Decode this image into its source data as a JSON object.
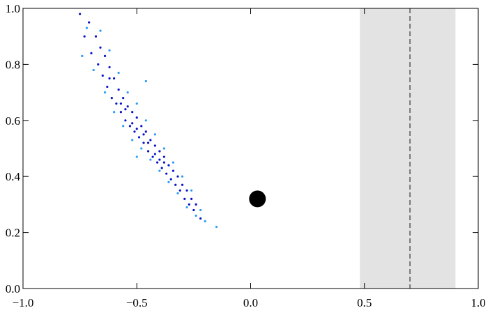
{
  "chart_data": {
    "type": "scatter",
    "xlim": [
      -1,
      1
    ],
    "ylim": [
      0,
      1
    ],
    "xticks": [
      {
        "value": -1,
        "label": "−1.0"
      },
      {
        "value": -0.5,
        "label": "−0.5"
      },
      {
        "value": 0,
        "label": "0.0"
      },
      0.5,
      {
        "value": 1,
        "label": "1.0"
      }
    ],
    "yticks": [
      {
        "value": 0,
        "label": "0.0"
      },
      0.2,
      0.4,
      0.6,
      0.8,
      {
        "value": 1,
        "label": "1.0"
      }
    ],
    "band": {
      "xlim": [
        0.48,
        0.9
      ],
      "color": "#e3e3e3"
    },
    "vline": {
      "x": 0.7,
      "color": "#333333"
    },
    "marker": {
      "x": 0.03,
      "y": 0.32,
      "color": "#000000"
    },
    "series": [
      {
        "color": "#0a14c8",
        "x": [
          -0.75,
          -0.73,
          -0.71,
          -0.7,
          -0.68,
          -0.67,
          -0.66,
          -0.65,
          -0.64,
          -0.63,
          -0.62,
          -0.61,
          -0.6,
          -0.59,
          -0.58,
          -0.57,
          -0.56,
          -0.55,
          -0.54,
          -0.53,
          -0.52,
          -0.51,
          -0.5,
          -0.49,
          -0.48,
          -0.47,
          -0.46,
          -0.45,
          -0.44,
          -0.43,
          -0.42,
          -0.41,
          -0.4,
          -0.39,
          -0.38,
          -0.37,
          -0.36,
          -0.35,
          -0.34,
          -0.33,
          -0.32,
          -0.31,
          -0.3,
          -0.29,
          -0.28,
          -0.27,
          -0.26,
          -0.25,
          -0.24,
          -0.22,
          -0.55,
          -0.5,
          -0.45,
          -0.42,
          -0.4,
          -0.38,
          -0.47,
          -0.52,
          -0.57,
          -0.62
        ],
        "values": [
          0.98,
          0.9,
          0.95,
          0.84,
          0.9,
          0.8,
          0.86,
          0.76,
          0.83,
          0.72,
          0.79,
          0.68,
          0.75,
          0.66,
          0.71,
          0.63,
          0.68,
          0.6,
          0.65,
          0.58,
          0.63,
          0.56,
          0.61,
          0.54,
          0.58,
          0.52,
          0.56,
          0.49,
          0.53,
          0.47,
          0.51,
          0.45,
          0.49,
          0.43,
          0.47,
          0.41,
          0.44,
          0.39,
          0.42,
          0.37,
          0.4,
          0.35,
          0.37,
          0.32,
          0.35,
          0.3,
          0.32,
          0.28,
          0.3,
          0.25,
          0.64,
          0.57,
          0.52,
          0.48,
          0.46,
          0.45,
          0.55,
          0.59,
          0.66,
          0.75
        ]
      },
      {
        "color": "#2a9df4",
        "x": [
          -0.74,
          -0.72,
          -0.69,
          -0.66,
          -0.64,
          -0.62,
          -0.6,
          -0.58,
          -0.56,
          -0.54,
          -0.52,
          -0.5,
          -0.48,
          -0.46,
          -0.44,
          -0.42,
          -0.4,
          -0.38,
          -0.36,
          -0.34,
          -0.32,
          -0.3,
          -0.28,
          -0.26,
          -0.24,
          -0.22,
          -0.2,
          -0.15,
          -0.46,
          -0.5
        ],
        "values": [
          0.83,
          0.93,
          0.78,
          0.92,
          0.7,
          0.85,
          0.63,
          0.77,
          0.58,
          0.7,
          0.53,
          0.66,
          0.5,
          0.6,
          0.46,
          0.55,
          0.42,
          0.5,
          0.38,
          0.45,
          0.34,
          0.4,
          0.29,
          0.35,
          0.26,
          0.28,
          0.24,
          0.22,
          0.74,
          0.47
        ]
      }
    ]
  }
}
